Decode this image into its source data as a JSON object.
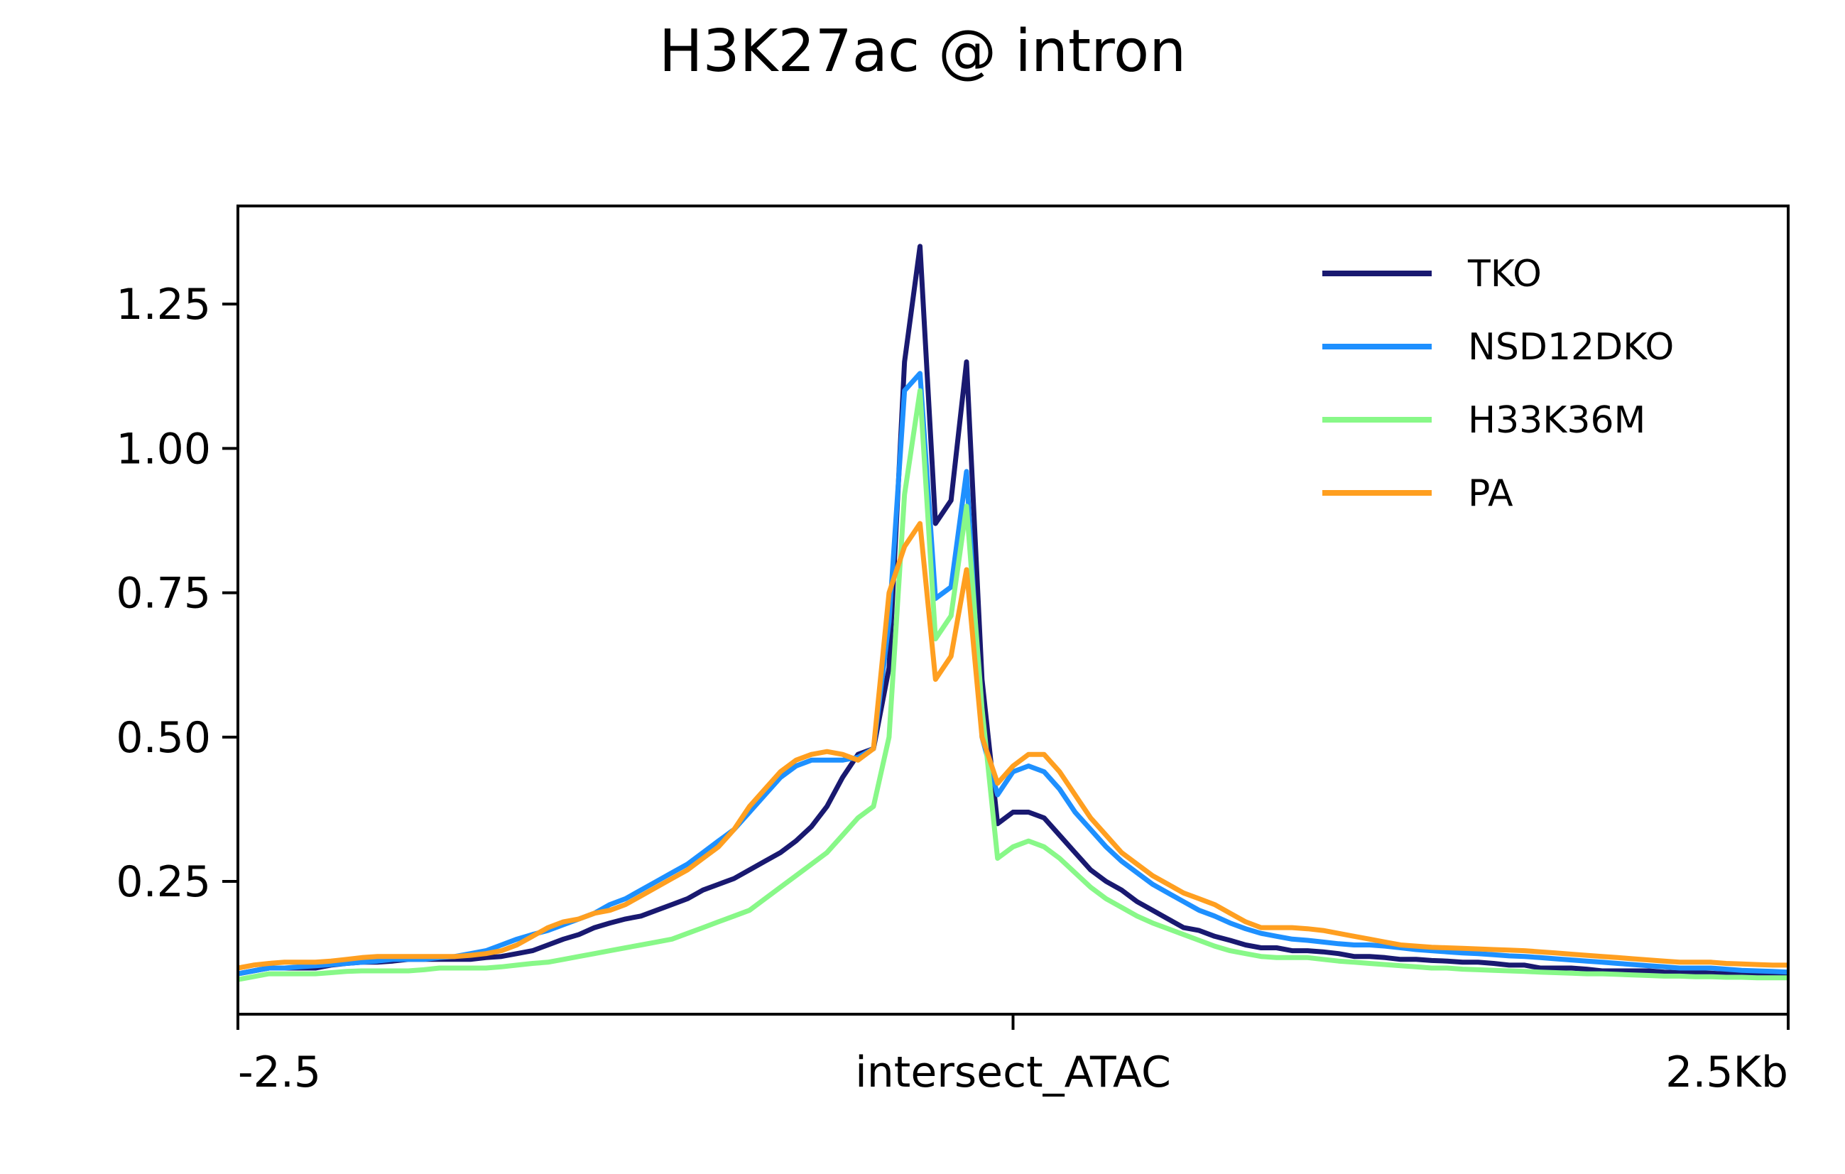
{
  "chart_data": {
    "type": "line",
    "title": "H3K27ac @ intron",
    "xlabel": "",
    "ylabel": "",
    "xlim": [
      -2.5,
      2.5
    ],
    "ylim": [
      0.02,
      1.42
    ],
    "x_ticks": [
      {
        "value": -2.5,
        "label": "-2.5"
      },
      {
        "value": 0,
        "label": "intersect_ATAC"
      },
      {
        "value": 2.5,
        "label": "2.5Kb"
      }
    ],
    "y_ticks": [
      {
        "value": 0.25,
        "label": "0.25"
      },
      {
        "value": 0.5,
        "label": "0.50"
      },
      {
        "value": 0.75,
        "label": "0.75"
      },
      {
        "value": 1.0,
        "label": "1.00"
      },
      {
        "value": 1.25,
        "label": "1.25"
      }
    ],
    "grid": false,
    "legend_position": "top-right",
    "x": [
      -2.5,
      -2.45,
      -2.4,
      -2.35,
      -2.3,
      -2.25,
      -2.2,
      -2.15,
      -2.1,
      -2.05,
      -2.0,
      -1.95,
      -1.9,
      -1.85,
      -1.8,
      -1.75,
      -1.7,
      -1.65,
      -1.6,
      -1.55,
      -1.5,
      -1.45,
      -1.4,
      -1.35,
      -1.3,
      -1.25,
      -1.2,
      -1.15,
      -1.1,
      -1.05,
      -1.0,
      -0.95,
      -0.9,
      -0.85,
      -0.8,
      -0.75,
      -0.7,
      -0.65,
      -0.6,
      -0.55,
      -0.5,
      -0.45,
      -0.4,
      -0.35,
      -0.3,
      -0.25,
      -0.2,
      -0.15,
      -0.1,
      -0.05,
      0.0,
      0.05,
      0.1,
      0.15,
      0.2,
      0.25,
      0.3,
      0.35,
      0.4,
      0.45,
      0.5,
      0.55,
      0.6,
      0.65,
      0.7,
      0.75,
      0.8,
      0.85,
      0.9,
      0.95,
      1.0,
      1.05,
      1.1,
      1.15,
      1.2,
      1.25,
      1.3,
      1.35,
      1.4,
      1.45,
      1.5,
      1.55,
      1.6,
      1.65,
      1.7,
      1.75,
      1.8,
      1.85,
      1.9,
      1.95,
      2.0,
      2.05,
      2.1,
      2.15,
      2.2,
      2.25,
      2.3,
      2.35,
      2.4,
      2.45,
      2.5
    ],
    "series": [
      {
        "name": "TKO",
        "color": "#191970",
        "values": [
          0.09,
          0.095,
          0.1,
          0.1,
          0.1,
          0.1,
          0.105,
          0.108,
          0.11,
          0.11,
          0.112,
          0.115,
          0.115,
          0.115,
          0.115,
          0.115,
          0.118,
          0.12,
          0.125,
          0.13,
          0.14,
          0.15,
          0.158,
          0.17,
          0.178,
          0.185,
          0.19,
          0.2,
          0.21,
          0.22,
          0.235,
          0.245,
          0.255,
          0.27,
          0.285,
          0.3,
          0.32,
          0.345,
          0.38,
          0.43,
          0.47,
          0.48,
          0.62,
          1.15,
          1.35,
          0.87,
          0.91,
          1.15,
          0.6,
          0.35,
          0.37,
          0.37,
          0.36,
          0.33,
          0.3,
          0.27,
          0.25,
          0.235,
          0.215,
          0.2,
          0.185,
          0.17,
          0.165,
          0.155,
          0.148,
          0.14,
          0.135,
          0.135,
          0.13,
          0.13,
          0.128,
          0.125,
          0.12,
          0.12,
          0.118,
          0.115,
          0.115,
          0.113,
          0.112,
          0.11,
          0.11,
          0.108,
          0.105,
          0.105,
          0.1,
          0.1,
          0.1,
          0.098,
          0.095,
          0.095,
          0.095,
          0.095,
          0.093,
          0.092,
          0.092,
          0.091,
          0.09,
          0.09,
          0.09,
          0.09,
          0.09
        ]
      },
      {
        "name": "NSD12DKO",
        "color": "#1e90ff",
        "values": [
          0.09,
          0.095,
          0.1,
          0.1,
          0.102,
          0.104,
          0.106,
          0.108,
          0.11,
          0.112,
          0.115,
          0.115,
          0.115,
          0.118,
          0.12,
          0.125,
          0.13,
          0.14,
          0.15,
          0.158,
          0.165,
          0.175,
          0.185,
          0.195,
          0.21,
          0.22,
          0.235,
          0.25,
          0.265,
          0.28,
          0.3,
          0.32,
          0.34,
          0.37,
          0.4,
          0.43,
          0.45,
          0.46,
          0.46,
          0.46,
          0.465,
          0.48,
          0.7,
          1.1,
          1.13,
          0.74,
          0.76,
          0.96,
          0.5,
          0.4,
          0.44,
          0.45,
          0.44,
          0.41,
          0.37,
          0.34,
          0.31,
          0.285,
          0.265,
          0.245,
          0.23,
          0.215,
          0.2,
          0.19,
          0.178,
          0.168,
          0.16,
          0.155,
          0.15,
          0.148,
          0.145,
          0.142,
          0.14,
          0.14,
          0.138,
          0.135,
          0.132,
          0.13,
          0.128,
          0.126,
          0.125,
          0.123,
          0.121,
          0.12,
          0.118,
          0.116,
          0.114,
          0.112,
          0.11,
          0.108,
          0.106,
          0.104,
          0.102,
          0.1,
          0.1,
          0.1,
          0.098,
          0.096,
          0.095,
          0.094,
          0.093
        ]
      },
      {
        "name": "H33K36M",
        "color": "#88f888",
        "values": [
          0.08,
          0.085,
          0.09,
          0.09,
          0.09,
          0.09,
          0.092,
          0.094,
          0.095,
          0.095,
          0.095,
          0.095,
          0.097,
          0.1,
          0.1,
          0.1,
          0.1,
          0.102,
          0.105,
          0.108,
          0.11,
          0.115,
          0.12,
          0.125,
          0.13,
          0.135,
          0.14,
          0.145,
          0.15,
          0.16,
          0.17,
          0.18,
          0.19,
          0.2,
          0.22,
          0.24,
          0.26,
          0.28,
          0.3,
          0.33,
          0.36,
          0.38,
          0.5,
          0.92,
          1.1,
          0.67,
          0.71,
          0.9,
          0.55,
          0.29,
          0.31,
          0.32,
          0.31,
          0.29,
          0.265,
          0.24,
          0.22,
          0.205,
          0.19,
          0.178,
          0.168,
          0.158,
          0.148,
          0.138,
          0.13,
          0.125,
          0.12,
          0.118,
          0.118,
          0.118,
          0.115,
          0.112,
          0.11,
          0.108,
          0.106,
          0.104,
          0.102,
          0.1,
          0.1,
          0.098,
          0.097,
          0.096,
          0.095,
          0.094,
          0.093,
          0.092,
          0.091,
          0.09,
          0.09,
          0.089,
          0.088,
          0.087,
          0.086,
          0.086,
          0.085,
          0.085,
          0.084,
          0.084,
          0.083,
          0.083,
          0.083
        ]
      },
      {
        "name": "PA",
        "color": "#ff9f20",
        "values": [
          0.1,
          0.105,
          0.108,
          0.11,
          0.11,
          0.11,
          0.112,
          0.115,
          0.118,
          0.12,
          0.12,
          0.12,
          0.12,
          0.12,
          0.12,
          0.122,
          0.125,
          0.13,
          0.14,
          0.155,
          0.17,
          0.18,
          0.185,
          0.195,
          0.2,
          0.21,
          0.225,
          0.24,
          0.255,
          0.27,
          0.29,
          0.31,
          0.34,
          0.38,
          0.41,
          0.44,
          0.46,
          0.47,
          0.475,
          0.47,
          0.46,
          0.48,
          0.75,
          0.83,
          0.87,
          0.6,
          0.64,
          0.79,
          0.5,
          0.42,
          0.45,
          0.47,
          0.47,
          0.44,
          0.4,
          0.36,
          0.33,
          0.3,
          0.28,
          0.26,
          0.245,
          0.23,
          0.22,
          0.21,
          0.195,
          0.18,
          0.17,
          0.17,
          0.17,
          0.168,
          0.165,
          0.16,
          0.155,
          0.15,
          0.145,
          0.14,
          0.138,
          0.136,
          0.135,
          0.134,
          0.133,
          0.132,
          0.131,
          0.13,
          0.128,
          0.126,
          0.124,
          0.122,
          0.12,
          0.118,
          0.116,
          0.114,
          0.112,
          0.11,
          0.11,
          0.11,
          0.108,
          0.107,
          0.106,
          0.105,
          0.105
        ]
      }
    ]
  }
}
